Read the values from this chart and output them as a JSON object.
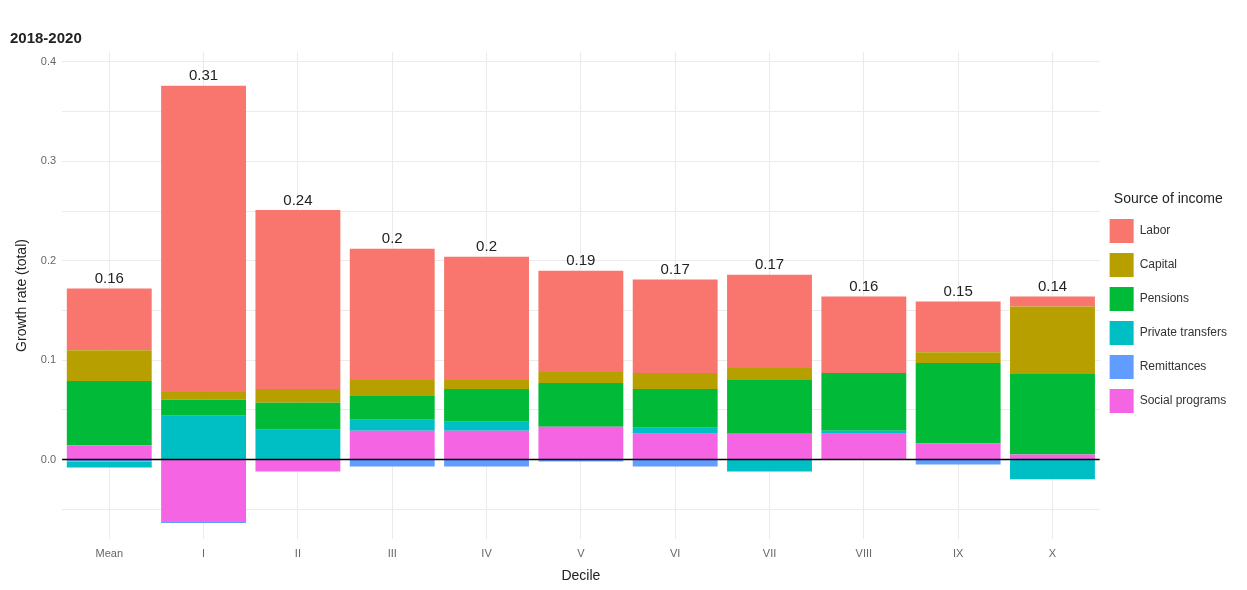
{
  "chart_data": {
    "type": "bar",
    "stacked": true,
    "title": "2018-2020",
    "xlabel": "Decile",
    "ylabel": "Growth rate (total)",
    "legend_title": "Source of income",
    "legend": "right",
    "grid": true,
    "categories": [
      "Mean",
      "I",
      "II",
      "III",
      "IV",
      "V",
      "VI",
      "VII",
      "VIII",
      "IX",
      "X"
    ],
    "series": [
      {
        "name": "Social programs",
        "color": "#f564e3",
        "values": [
          0.014,
          -0.063,
          -0.012,
          0.029,
          0.029,
          0.033,
          0.026,
          0.026,
          0.026,
          0.016,
          0.005
        ]
      },
      {
        "name": "Remittances",
        "color": "#619cff",
        "values": [
          -0.002,
          -0.001,
          null,
          -0.007,
          -0.007,
          -0.002,
          -0.007,
          null,
          null,
          -0.005,
          null
        ]
      },
      {
        "name": "Private transfers",
        "color": "#00bfc4",
        "values": [
          -0.006,
          0.044,
          0.03,
          0.011,
          0.009,
          null,
          0.006,
          -0.012,
          0.003,
          null,
          -0.02
        ]
      },
      {
        "name": "Pensions",
        "color": "#00ba38",
        "values": [
          0.065,
          0.016,
          0.027,
          0.024,
          0.033,
          0.044,
          0.039,
          0.054,
          0.058,
          0.081,
          0.081
        ]
      },
      {
        "name": "Capital",
        "color": "#b79f00",
        "values": [
          0.031,
          0.008,
          0.014,
          0.016,
          0.009,
          0.011,
          0.016,
          0.012,
          null,
          0.011,
          0.068
        ]
      },
      {
        "name": "Labor",
        "color": "#f8766d",
        "values": [
          0.062,
          0.308,
          0.18,
          0.132,
          0.124,
          0.102,
          0.094,
          0.094,
          0.077,
          0.051,
          0.01
        ]
      }
    ],
    "totals": [
      "0.16",
      "0.31",
      "0.24",
      "0.2",
      "0.2",
      "0.19",
      "0.17",
      "0.17",
      "0.16",
      "0.15",
      "0.14"
    ],
    "ylim": [
      -0.08,
      0.41
    ],
    "yticks": [
      {
        "value": -0.05,
        "label": null
      },
      {
        "value": 0,
        "label": "0.0"
      },
      {
        "value": 0.05,
        "label": null
      },
      {
        "value": 0.1,
        "label": "0.1"
      },
      {
        "value": 0.15,
        "label": null
      },
      {
        "value": 0.2,
        "label": "0.2"
      },
      {
        "value": 0.25,
        "label": null
      },
      {
        "value": 0.3,
        "label": "0.3"
      },
      {
        "value": 0.35,
        "label": null
      },
      {
        "value": 0.4,
        "label": "0.4"
      }
    ],
    "ref_lines": [
      {
        "axis": "y",
        "value": 0,
        "color": "#000000"
      }
    ]
  }
}
